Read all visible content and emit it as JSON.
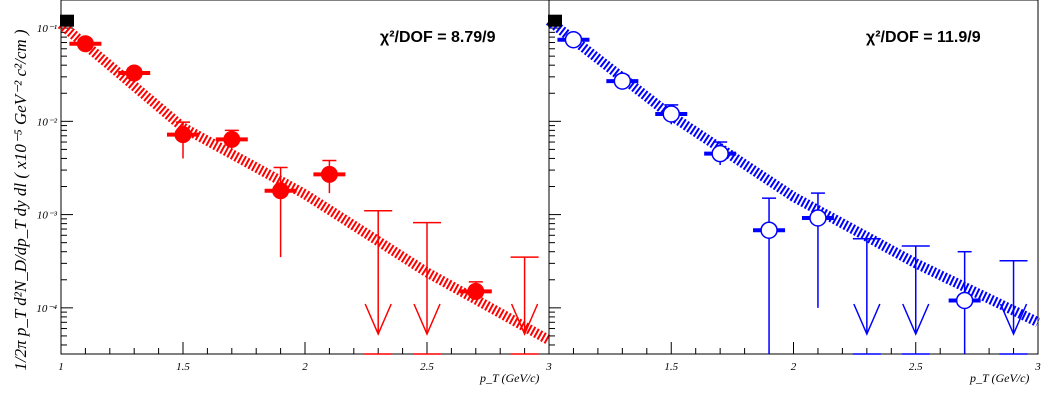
{
  "ylabel": "1/2π p_T d²N_D/dp_T dy dl ( x10⁻⁵ GeV⁻² c²/cm )",
  "xlabel_left": "p_T (GeV/c)",
  "xlabel_right": "p_T (GeV/c)",
  "colors": {
    "left": "#ff0000",
    "right": "#0000ff",
    "marker_black": "#000000"
  },
  "chart_data": [
    {
      "type": "scatter",
      "panel": "left",
      "title": "",
      "annotation": "χ²/DOF = 8.79/9",
      "xlabel": "p_T (GeV/c)",
      "x_scale": "linear",
      "y_scale": "log",
      "xlim": [
        1.0,
        3.0
      ],
      "ylim": [
        3.2e-05,
        0.2
      ],
      "x_ticks": [
        1,
        1.5,
        2,
        2.5,
        3
      ],
      "x_tick_labels": [
        "1",
        "1.5",
        "2",
        "2.5",
        "3"
      ],
      "y_ticks": [
        0.0001,
        0.001,
        0.01,
        0.1
      ],
      "y_tick_labels": [
        "10⁻⁴",
        "10⁻³",
        "10⁻²",
        "10⁻¹"
      ],
      "marker": "filled-circle",
      "points": [
        {
          "x": 1.1,
          "y": 0.068,
          "ylo": 0.06,
          "yhi": 0.076
        },
        {
          "x": 1.3,
          "y": 0.033,
          "ylo": 0.029,
          "yhi": 0.037
        },
        {
          "x": 1.5,
          "y": 0.0072,
          "ylo": 0.004,
          "yhi": 0.0098
        },
        {
          "x": 1.7,
          "y": 0.0064,
          "ylo": 0.005,
          "yhi": 0.008
        },
        {
          "x": 1.9,
          "y": 0.0018,
          "ylo": 0.00035,
          "yhi": 0.0032
        },
        {
          "x": 2.1,
          "y": 0.0027,
          "ylo": 0.0017,
          "yhi": 0.0038
        },
        {
          "x": 2.7,
          "y": 0.00015,
          "ylo": 0.00015,
          "yhi": 0.00019
        }
      ],
      "upper_limits": [
        {
          "x": 2.3,
          "y": 0.0011
        },
        {
          "x": 2.5,
          "y": 0.00082
        },
        {
          "x": 2.9,
          "y": 0.00035
        }
      ],
      "fit": {
        "x": [
          1.0,
          1.5,
          2.0,
          2.5,
          3.0
        ],
        "y": [
          0.11,
          0.0086,
          0.00165,
          0.00024,
          4.5e-05
        ]
      },
      "black_marker": {
        "x": 1.03,
        "y": 0.12
      }
    },
    {
      "type": "scatter",
      "panel": "right",
      "title": "",
      "annotation": "χ²/DOF = 11.9/9",
      "xlabel": "p_T (GeV/c)",
      "x_scale": "linear",
      "y_scale": "log",
      "xlim": [
        1.0,
        3.0
      ],
      "ylim": [
        3.2e-05,
        0.2
      ],
      "x_ticks": [
        1.5,
        2,
        2.5,
        3
      ],
      "x_tick_labels": [
        "1.5",
        "2",
        "2.5",
        "3"
      ],
      "y_ticks": [
        0.0001,
        0.001,
        0.01,
        0.1
      ],
      "y_tick_labels": [
        "",
        "",
        "",
        ""
      ],
      "marker": "open-circle",
      "points": [
        {
          "x": 1.1,
          "y": 0.075,
          "ylo": 0.068,
          "yhi": 0.083
        },
        {
          "x": 1.3,
          "y": 0.027,
          "ylo": 0.024,
          "yhi": 0.031
        },
        {
          "x": 1.5,
          "y": 0.012,
          "ylo": 0.0093,
          "yhi": 0.015
        },
        {
          "x": 1.7,
          "y": 0.0045,
          "ylo": 0.0034,
          "yhi": 0.006
        },
        {
          "x": 1.9,
          "y": 0.00068,
          "ylo": 3.2e-05,
          "yhi": 0.0015
        },
        {
          "x": 2.1,
          "y": 0.00092,
          "ylo": 0.0001,
          "yhi": 0.0017
        },
        {
          "x": 2.7,
          "y": 0.00012,
          "ylo": 3.2e-05,
          "yhi": 0.0004
        }
      ],
      "upper_limits": [
        {
          "x": 2.3,
          "y": 0.00055
        },
        {
          "x": 2.5,
          "y": 0.00046
        },
        {
          "x": 2.9,
          "y": 0.00032
        }
      ],
      "fit": {
        "x": [
          1.0,
          1.5,
          2.0,
          2.5,
          3.0
        ],
        "y": [
          0.12,
          0.0115,
          0.00155,
          0.0003,
          7e-05
        ]
      },
      "black_marker": {
        "x": 1.03,
        "y": 0.12
      }
    }
  ]
}
